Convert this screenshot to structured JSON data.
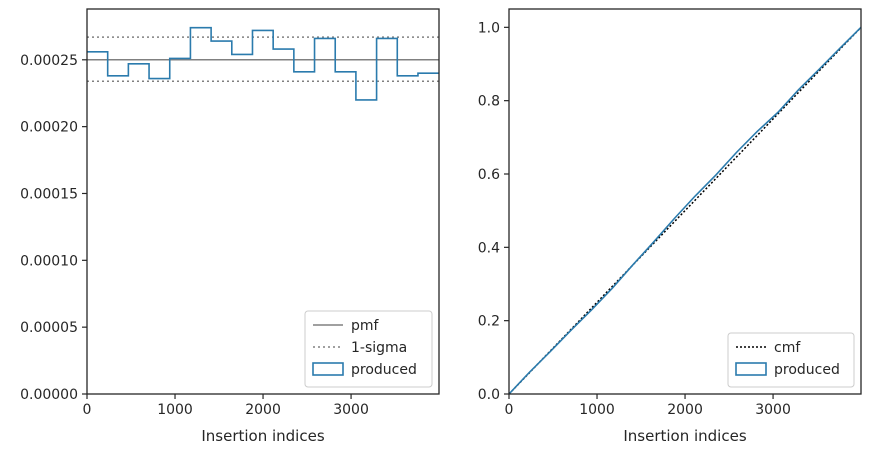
{
  "colors": {
    "produced": "#2b7bad",
    "pmf": "#808080",
    "sigma": "#808080",
    "cmf": "#000000",
    "axes": "#262626",
    "legend_edge": "#cccccc"
  },
  "chart_data": [
    {
      "type": "line",
      "xlabel": "Insertion indices",
      "ylabel": "",
      "xlim": [
        0,
        3999
      ],
      "ylim": [
        0,
        0.000288
      ],
      "xticks": [
        0,
        1000,
        2000,
        3000
      ],
      "xtick_labels": [
        "0",
        "1000",
        "2000",
        "3000"
      ],
      "yticks": [
        0,
        5e-05,
        0.0001,
        0.00015,
        0.0002,
        0.00025
      ],
      "ytick_labels": [
        "0.00000",
        "0.00005",
        "0.00010",
        "0.00015",
        "0.00020",
        "0.00025"
      ],
      "legend_position": "lower right",
      "legend": [
        "pmf",
        "1-sigma",
        "produced"
      ],
      "series": [
        {
          "name": "pmf",
          "style": "solid",
          "value": 0.00025
        },
        {
          "name": "1-sigma",
          "style": "dotted",
          "values": [
            0.000234,
            0.000267
          ]
        },
        {
          "name": "produced",
          "style": "step-histogram",
          "bin_edges": [
            0,
            235,
            470,
            705,
            940,
            1175,
            1410,
            1645,
            1880,
            2115,
            2350,
            2585,
            2820,
            3055,
            3290,
            3525,
            3760,
            3999
          ],
          "values": [
            0.000256,
            0.000238,
            0.000247,
            0.000236,
            0.000251,
            0.000274,
            0.000264,
            0.000254,
            0.000272,
            0.000258,
            0.000241,
            0.000266,
            0.000241,
            0.00022,
            0.000266,
            0.000238,
            0.00024
          ]
        }
      ]
    },
    {
      "type": "line",
      "xlabel": "Insertion indices",
      "ylabel": "",
      "xlim": [
        0,
        3999
      ],
      "ylim": [
        0,
        1.05
      ],
      "xticks": [
        0,
        1000,
        2000,
        3000
      ],
      "xtick_labels": [
        "0",
        "1000",
        "2000",
        "3000"
      ],
      "yticks": [
        0,
        0.2,
        0.4,
        0.6,
        0.8,
        1.0
      ],
      "ytick_labels": [
        "0.0",
        "0.2",
        "0.4",
        "0.6",
        "0.8",
        "1.0"
      ],
      "legend_position": "lower right",
      "legend": [
        "cmf",
        "produced"
      ],
      "series": [
        {
          "name": "cmf",
          "style": "dotted",
          "x": [
            0,
            3999
          ],
          "y": [
            0,
            1.0
          ]
        },
        {
          "name": "produced",
          "style": "cumulative-step",
          "x": [
            0,
            235,
            470,
            705,
            940,
            1175,
            1410,
            1645,
            1880,
            2115,
            2350,
            2585,
            2820,
            3055,
            3290,
            3525,
            3760,
            3999
          ],
          "y": [
            0,
            0.06,
            0.116,
            0.174,
            0.23,
            0.289,
            0.353,
            0.415,
            0.479,
            0.54,
            0.597,
            0.659,
            0.716,
            0.768,
            0.83,
            0.886,
            0.943,
            1.0
          ]
        }
      ]
    }
  ]
}
